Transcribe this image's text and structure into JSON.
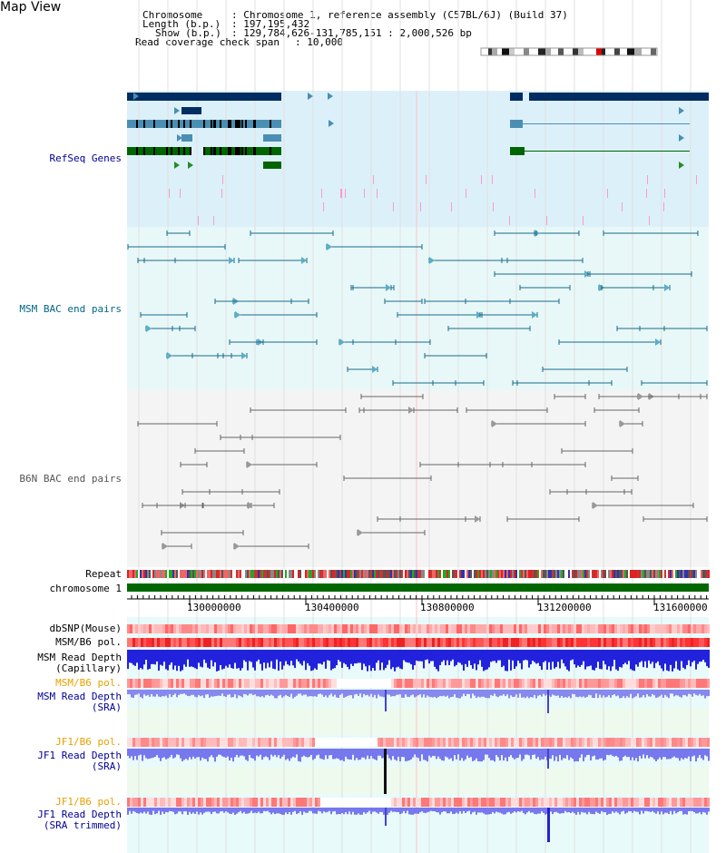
{
  "title": "Map View",
  "info": {
    "chromosome_label": "Chromosome",
    "chromosome_value": ": Chromosome 1, reference assembly (C57BL/6J) (Build 37)",
    "length_label": "Length (b.p.)",
    "length_value": ": 197,195,432",
    "show_label": "Show (b.p.)",
    "show_value": ": 129,784,626-131,785,151 : 2,000,526 bp",
    "coverage_label": "Read coverage check span",
    "coverage_value": ": 10,000"
  },
  "tracks": {
    "refseq": "RefSeq Genes",
    "msm_bac": "MSM BAC end pairs",
    "b6n_bac": "B6N BAC end pairs",
    "repeat": "Repeat",
    "chromosome": "chromosome 1",
    "dbsnp": "dbSNP(Mouse)",
    "msm_b6_pol_1": "MSM/B6 pol.",
    "msm_read_depth_cap_1": "MSM Read Depth",
    "msm_read_depth_cap_2": "(Capillary)",
    "msm_b6_pol_2": "MSM/B6 pol.",
    "msm_read_depth_sra_1": "MSM Read Depth",
    "msm_read_depth_sra_2": "(SRA)",
    "jf1_b6_pol_1": "JF1/B6 pol.",
    "jf1_read_depth_1": "JF1 Read Depth",
    "jf1_read_depth_2": "(SRA)",
    "jf1_b6_pol_2": "JF1/B6 pol.",
    "jf1_read_depth_trim_1": "JF1 Read Depth",
    "jf1_read_depth_trim_2": "(SRA trimmed)"
  },
  "axis_ticks": [
    "130000000",
    "130400000",
    "130800000",
    "131200000",
    "131600000"
  ],
  "colors": {
    "refseq_dark": "#002d62",
    "refseq_mid": "#4a8fb3",
    "refseq_green": "#006400",
    "msm_label": "#006688",
    "b6n_label": "#555555",
    "pol_label": "#e8a000",
    "depth_label": "#000099",
    "chromosome_bar": "#006600"
  }
}
